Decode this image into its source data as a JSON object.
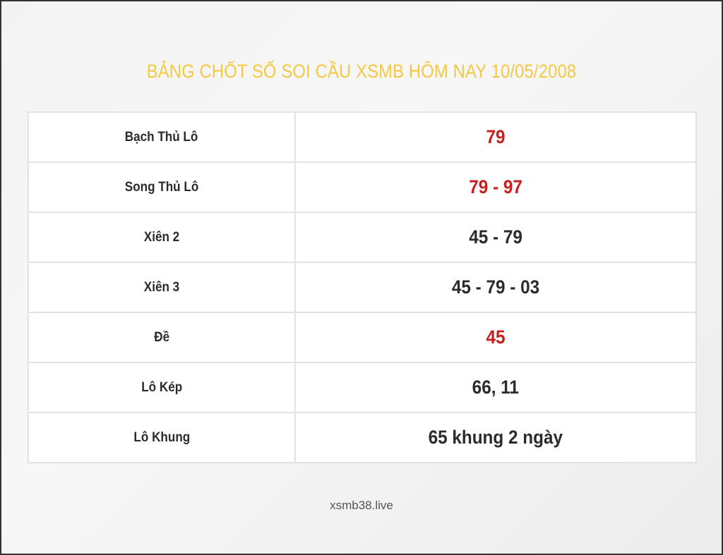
{
  "title": "BẢNG CHỐT SỐ SOI CẦU XSMB HÔM NAY 10/05/2008",
  "colors": {
    "title": "#f5c842",
    "highlight": "#c81e1e",
    "normal": "#2b2b2b"
  },
  "rows": [
    {
      "label": "Bạch Thủ Lô",
      "value": "79",
      "highlight": true
    },
    {
      "label": "Song Thủ Lô",
      "value": "79 - 97",
      "highlight": true
    },
    {
      "label": "Xiên 2",
      "value": "45 - 79",
      "highlight": false
    },
    {
      "label": "Xiên 3",
      "value": "45 - 79 - 03",
      "highlight": false
    },
    {
      "label": "Đề",
      "value": "45",
      "highlight": true
    },
    {
      "label": "Lô Kép",
      "value": "66, 11",
      "highlight": false
    },
    {
      "label": "Lô Khung",
      "value": "65 khung 2 ngày",
      "highlight": false
    }
  ],
  "footer": "xsmb38.live"
}
